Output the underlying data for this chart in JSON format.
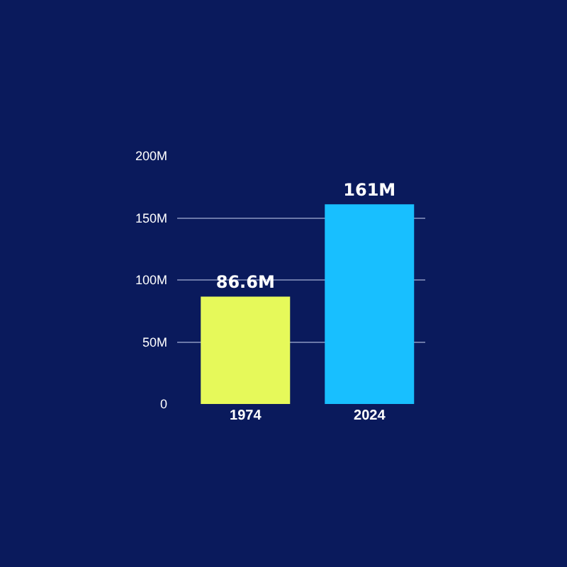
{
  "chart_data": {
    "type": "bar",
    "categories": [
      "1974",
      "2024"
    ],
    "values": [
      86.6,
      161
    ],
    "colors": [
      "#e6f95a",
      "#18bfff"
    ],
    "value_labels": [
      "86.6M",
      "161M"
    ],
    "ylim": [
      0,
      200
    ],
    "yticks": [
      {
        "value": 0,
        "label": "0"
      },
      {
        "value": 50,
        "label": "50M"
      },
      {
        "value": 100,
        "label": "100M"
      },
      {
        "value": 150,
        "label": "150M"
      },
      {
        "value": 200,
        "label": "200M"
      }
    ],
    "grid": "y"
  }
}
